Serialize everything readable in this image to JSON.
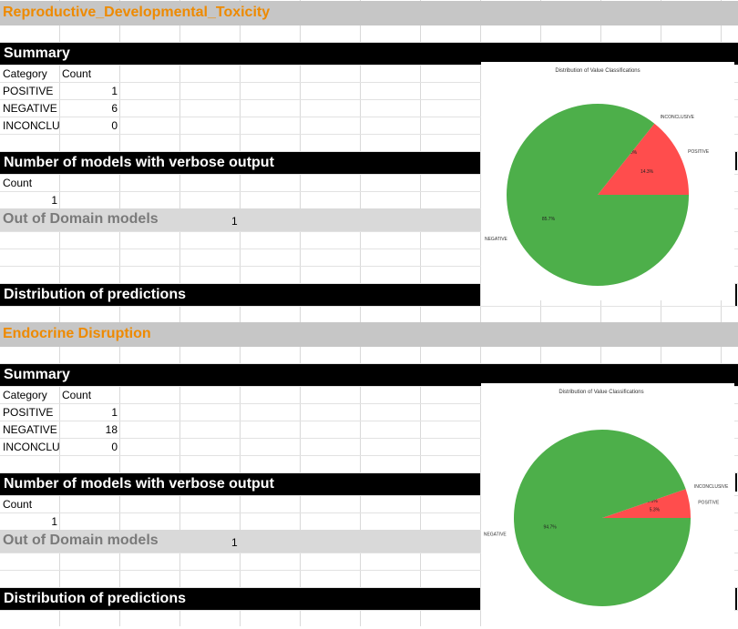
{
  "sections": [
    {
      "title": "Reproductive_Developmental_Toxicity",
      "summary_heading": "Summary",
      "table_headers": [
        "Category",
        "Count"
      ],
      "rows": [
        {
          "category": "POSITIVE",
          "count": "1"
        },
        {
          "category": "NEGATIVE",
          "count": "6"
        },
        {
          "category": "INCONCLUSIVE",
          "count": "0"
        }
      ],
      "verbose_heading": "Number of models with verbose output",
      "verbose_count_label": "Count",
      "verbose_count": "1",
      "ood_label": "Out of Domain models",
      "ood_value": "1",
      "distribution_heading": "Distribution of predictions"
    },
    {
      "title": "Endocrine Disruption",
      "summary_heading": "Summary",
      "table_headers": [
        "Category",
        "Count"
      ],
      "rows": [
        {
          "category": "POSITIVE",
          "count": "1"
        },
        {
          "category": "NEGATIVE",
          "count": "18"
        },
        {
          "category": "INCONCLUSIVE",
          "count": "0"
        }
      ],
      "verbose_heading": "Number of models with verbose output",
      "verbose_count_label": "Count",
      "verbose_count": "1",
      "ood_label": "Out of Domain models",
      "ood_value": "1",
      "distribution_heading": "Distribution of predictions"
    }
  ],
  "chart_data": [
    {
      "type": "pie",
      "title": "Distribution of Value Classifications",
      "slices": [
        {
          "label": "POSITIVE",
          "value": 14.3,
          "pct_label": "14.3%",
          "color": "#ff4d4d"
        },
        {
          "label": "INCONCLUSIVE",
          "value": 0.0,
          "pct_label": "0.0%",
          "color": "#4472c4"
        },
        {
          "label": "NEGATIVE",
          "value": 85.7,
          "pct_label": "85.7%",
          "color": "#4daf4a"
        }
      ]
    },
    {
      "type": "pie",
      "title": "Distribution of Value Classifications",
      "slices": [
        {
          "label": "POSITIVE",
          "value": 5.3,
          "pct_label": "5.3%",
          "color": "#ff4d4d"
        },
        {
          "label": "INCONCLUSIVE",
          "value": 0.0,
          "pct_label": "0.0%",
          "color": "#4472c4"
        },
        {
          "label": "NEGATIVE",
          "value": 94.7,
          "pct_label": "94.7%",
          "color": "#4daf4a"
        }
      ]
    }
  ]
}
